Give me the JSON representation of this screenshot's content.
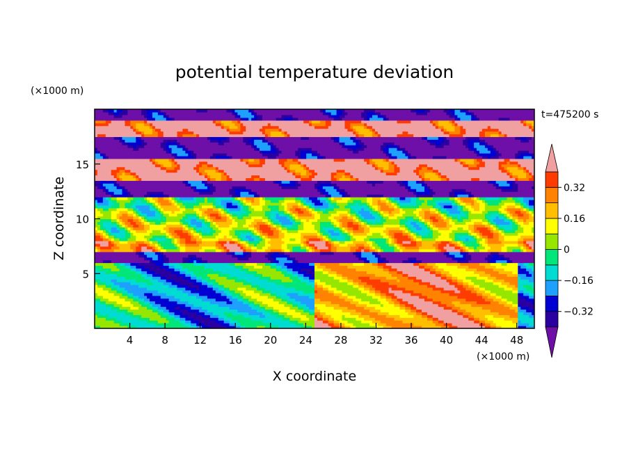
{
  "chart_data": {
    "type": "heatmap",
    "title": "potential temperature deviation",
    "xlabel": "X coordinate",
    "ylabel": "Z coordinate",
    "x_unit": "(×1000 m)",
    "y_unit": "(×1000 m)",
    "time_label": "t=475200 s",
    "xlim": [
      0,
      50
    ],
    "ylim": [
      0,
      20
    ],
    "x_ticks": [
      4,
      8,
      12,
      16,
      20,
      24,
      28,
      32,
      36,
      40,
      44,
      48
    ],
    "y_ticks": [
      5,
      10,
      15
    ],
    "colorbar": {
      "levels": [
        -0.4,
        -0.32,
        -0.24,
        -0.16,
        -0.08,
        0,
        0.08,
        0.16,
        0.24,
        0.32,
        0.4
      ],
      "labels": [
        {
          "value": 0.32,
          "text": "0.32"
        },
        {
          "value": 0.16,
          "text": "0.16"
        },
        {
          "value": 0,
          "text": "0"
        },
        {
          "value": -0.16,
          "text": "−0.16"
        },
        {
          "value": -0.32,
          "text": "−0.32"
        }
      ],
      "colors": [
        "#6e0fa8",
        "#2a00a0",
        "#0000d2",
        "#1ea0ff",
        "#00dcd2",
        "#00e678",
        "#96e600",
        "#ffff00",
        "#ffbe00",
        "#ff8200",
        "#ff3c00",
        "#f0a0a0"
      ]
    },
    "bands": [
      {
        "z": [
          19.0,
          20.0
        ],
        "value": -0.45
      },
      {
        "z": [
          17.5,
          19.0
        ],
        "value": 0.45
      },
      {
        "z": [
          15.5,
          17.5
        ],
        "value": -0.45
      },
      {
        "z": [
          13.5,
          15.5
        ],
        "value": 0.45
      },
      {
        "z": [
          12.0,
          13.5
        ],
        "value": -0.45
      },
      {
        "z": [
          11.0,
          12.0
        ],
        "value": 0.0
      },
      {
        "z": [
          9.5,
          11.0
        ],
        "value": 0.06
      },
      {
        "z": [
          8.0,
          9.5
        ],
        "value": 0.1
      },
      {
        "z": [
          7.0,
          8.0
        ],
        "value": 0.2
      },
      {
        "z": [
          6.0,
          7.0
        ],
        "value": -0.45
      },
      {
        "z": [
          0.0,
          6.0
        ],
        "value": -0.12
      }
    ]
  }
}
